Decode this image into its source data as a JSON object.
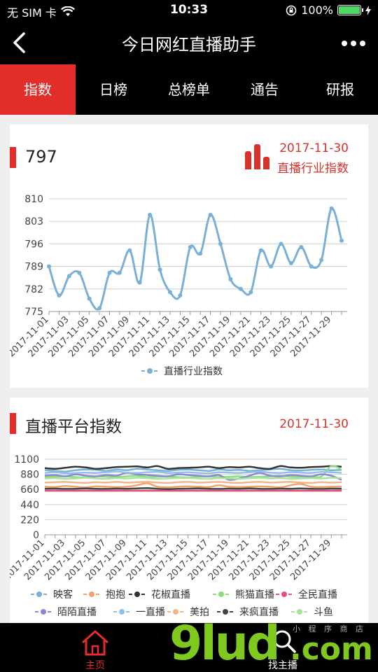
{
  "status_bar": {
    "carrier": "无 SIM 卡",
    "time": "10:33",
    "battery": "100%",
    "battery_level": 1.0
  },
  "nav": {
    "title": "今日网红直播助手",
    "back_icon": "chevron-left-icon",
    "more_icon": "more-dots-icon"
  },
  "tabs": [
    {
      "label": "指数",
      "active": true
    },
    {
      "label": "日榜",
      "active": false
    },
    {
      "label": "总榜单",
      "active": false
    },
    {
      "label": "通告",
      "active": false
    },
    {
      "label": "研报",
      "active": false
    }
  ],
  "industry_card": {
    "value": "797",
    "date": "2017-11-30",
    "subtitle": "直播行业指数",
    "accent": "#d8322c"
  },
  "platform_card": {
    "title": "直播平台指数",
    "date": "2017-11-30",
    "accent": "#d8322c"
  },
  "chart_data": [
    {
      "type": "line",
      "x": [
        "2017-11-01",
        "2017-11-02",
        "2017-11-03",
        "2017-11-04",
        "2017-11-05",
        "2017-11-06",
        "2017-11-07",
        "2017-11-08",
        "2017-11-09",
        "2017-11-10",
        "2017-11-11",
        "2017-11-12",
        "2017-11-13",
        "2017-11-14",
        "2017-11-15",
        "2017-11-16",
        "2017-11-17",
        "2017-11-18",
        "2017-11-19",
        "2017-11-20",
        "2017-11-21",
        "2017-11-22",
        "2017-11-23",
        "2017-11-24",
        "2017-11-25",
        "2017-11-26",
        "2017-11-27",
        "2017-11-28",
        "2017-11-29",
        "2017-11-30"
      ],
      "tick_labels": [
        "2017-11-01",
        "2017-11-03",
        "2017-11-05",
        "2017-11-07",
        "2017-11-09",
        "2017-11-11",
        "2017-11-13",
        "2017-11-15",
        "2017-11-17",
        "2017-11-19",
        "2017-11-21",
        "2017-11-23",
        "2017-11-25",
        "2017-11-27",
        "2017-11-29"
      ],
      "series": [
        {
          "name": "直播行业指数",
          "color": "#7ab0d6",
          "values": [
            789,
            780,
            786,
            787,
            779,
            776,
            787,
            787,
            794,
            784,
            805,
            788,
            781,
            780,
            795,
            793,
            805,
            796,
            785,
            782,
            781,
            794,
            789,
            796,
            790,
            795,
            789,
            791,
            807,
            797
          ]
        }
      ],
      "yticks": [
        775,
        782,
        789,
        796,
        803,
        810
      ],
      "ylim": [
        775,
        810
      ],
      "legend_position": "bottom",
      "grid": true
    },
    {
      "type": "line",
      "x": [
        "2017-11-01",
        "2017-11-02",
        "2017-11-03",
        "2017-11-04",
        "2017-11-05",
        "2017-11-06",
        "2017-11-07",
        "2017-11-08",
        "2017-11-09",
        "2017-11-10",
        "2017-11-11",
        "2017-11-12",
        "2017-11-13",
        "2017-11-14",
        "2017-11-15",
        "2017-11-16",
        "2017-11-17",
        "2017-11-18",
        "2017-11-19",
        "2017-11-20",
        "2017-11-21",
        "2017-11-22",
        "2017-11-23",
        "2017-11-24",
        "2017-11-25",
        "2017-11-26",
        "2017-11-27",
        "2017-11-28",
        "2017-11-29",
        "2017-11-30"
      ],
      "tick_labels": [
        "2017-11-01",
        "2017-11-03",
        "2017-11-05",
        "2017-11-07",
        "2017-11-09",
        "2017-11-11",
        "2017-11-13",
        "2017-11-15",
        "2017-11-17",
        "2017-11-19",
        "2017-11-21",
        "2017-11-23",
        "2017-11-25",
        "2017-11-27",
        "2017-11-29"
      ],
      "yticks": [
        0,
        220,
        440,
        660,
        880,
        1100
      ],
      "ylim": [
        0,
        1100
      ],
      "legend_position": "bottom",
      "grid": true,
      "series": [
        {
          "name": "映客",
          "color": "#7ab0d6",
          "values": [
            940,
            930,
            920,
            940,
            950,
            945,
            930,
            950,
            940,
            960,
            950,
            940,
            930,
            945,
            950,
            940,
            930,
            950,
            940,
            945,
            930,
            940,
            950,
            960,
            940,
            935,
            945,
            950,
            940,
            945
          ]
        },
        {
          "name": "抱抱",
          "color": "#f0a36a",
          "values": [
            700,
            695,
            710,
            700,
            690,
            705,
            700,
            695,
            700,
            720,
            750,
            700,
            690,
            700,
            705,
            700,
            695,
            720,
            700,
            695,
            700,
            705,
            700,
            690,
            720,
            740,
            700,
            695,
            700,
            700
          ]
        },
        {
          "name": "花椒直播",
          "color": "#333333",
          "values": [
            970,
            960,
            975,
            990,
            980,
            960,
            970,
            985,
            990,
            995,
            980,
            1000,
            960,
            970,
            975,
            980,
            990,
            970,
            985,
            980,
            990,
            970,
            960,
            1000,
            980,
            975,
            985,
            990,
            1000,
            990
          ]
        },
        {
          "name": "熊猫直播",
          "color": "#8fdc7f",
          "values": [
            840,
            845,
            850,
            840,
            835,
            850,
            845,
            840,
            850,
            860,
            840,
            845,
            850,
            840,
            835,
            845,
            850,
            840,
            845,
            850,
            840,
            845,
            850,
            860,
            845,
            840,
            850,
            845,
            1000,
            950
          ]
        },
        {
          "name": "全民直播",
          "color": "#e0507a",
          "values": [
            640,
            640,
            640,
            640,
            640,
            640,
            640,
            640,
            640,
            640,
            640,
            640,
            640,
            640,
            640,
            640,
            640,
            640,
            640,
            640,
            640,
            640,
            640,
            640,
            640,
            640,
            640,
            640,
            640,
            640
          ]
        },
        {
          "name": "陌陌直播",
          "color": "#8b86d8",
          "values": [
            860,
            870,
            850,
            880,
            860,
            850,
            870,
            860,
            900,
            880,
            870,
            860,
            850,
            880,
            870,
            860,
            850,
            870,
            800,
            820,
            860,
            900,
            860,
            850,
            870,
            860,
            850,
            880,
            860,
            800
          ]
        },
        {
          "name": "一直播",
          "color": "#8fc2e8",
          "values": [
            900,
            910,
            895,
            900,
            905,
            900,
            910,
            920,
            905,
            900,
            910,
            915,
            900,
            905,
            910,
            900,
            895,
            910,
            905,
            900,
            910,
            920,
            905,
            900,
            910,
            905,
            900,
            915,
            910,
            900
          ]
        },
        {
          "name": "美拍",
          "color": "#f2b48a",
          "values": [
            760,
            765,
            770,
            760,
            755,
            765,
            760,
            770,
            760,
            765,
            770,
            760,
            755,
            765,
            770,
            760,
            765,
            770,
            760,
            755,
            765,
            770,
            760,
            765,
            770,
            760,
            755,
            765,
            760,
            765
          ]
        },
        {
          "name": "来疯直播",
          "color": "#444444",
          "values": [
            670,
            672,
            668,
            670,
            675,
            670,
            668,
            672,
            670,
            675,
            680,
            670,
            665,
            670,
            672,
            675,
            670,
            668,
            672,
            670,
            675,
            670,
            668,
            672,
            670,
            675,
            670,
            668,
            672,
            670
          ]
        },
        {
          "name": "斗鱼",
          "color": "#a6e49a",
          "values": [
            820,
            825,
            815,
            820,
            830,
            820,
            815,
            825,
            820,
            830,
            825,
            815,
            820,
            825,
            830,
            820,
            815,
            825,
            820,
            815,
            825,
            830,
            820,
            825,
            815,
            820,
            825,
            820,
            830,
            825
          ]
        }
      ]
    }
  ],
  "footer": {
    "home_label": "主页",
    "anchor_label": "找主播",
    "home_icon": "home-icon",
    "search_icon": "search-icon"
  },
  "watermark": {
    "big": "9lud",
    "com": ".com",
    "small": "小 程 序 商 店"
  }
}
